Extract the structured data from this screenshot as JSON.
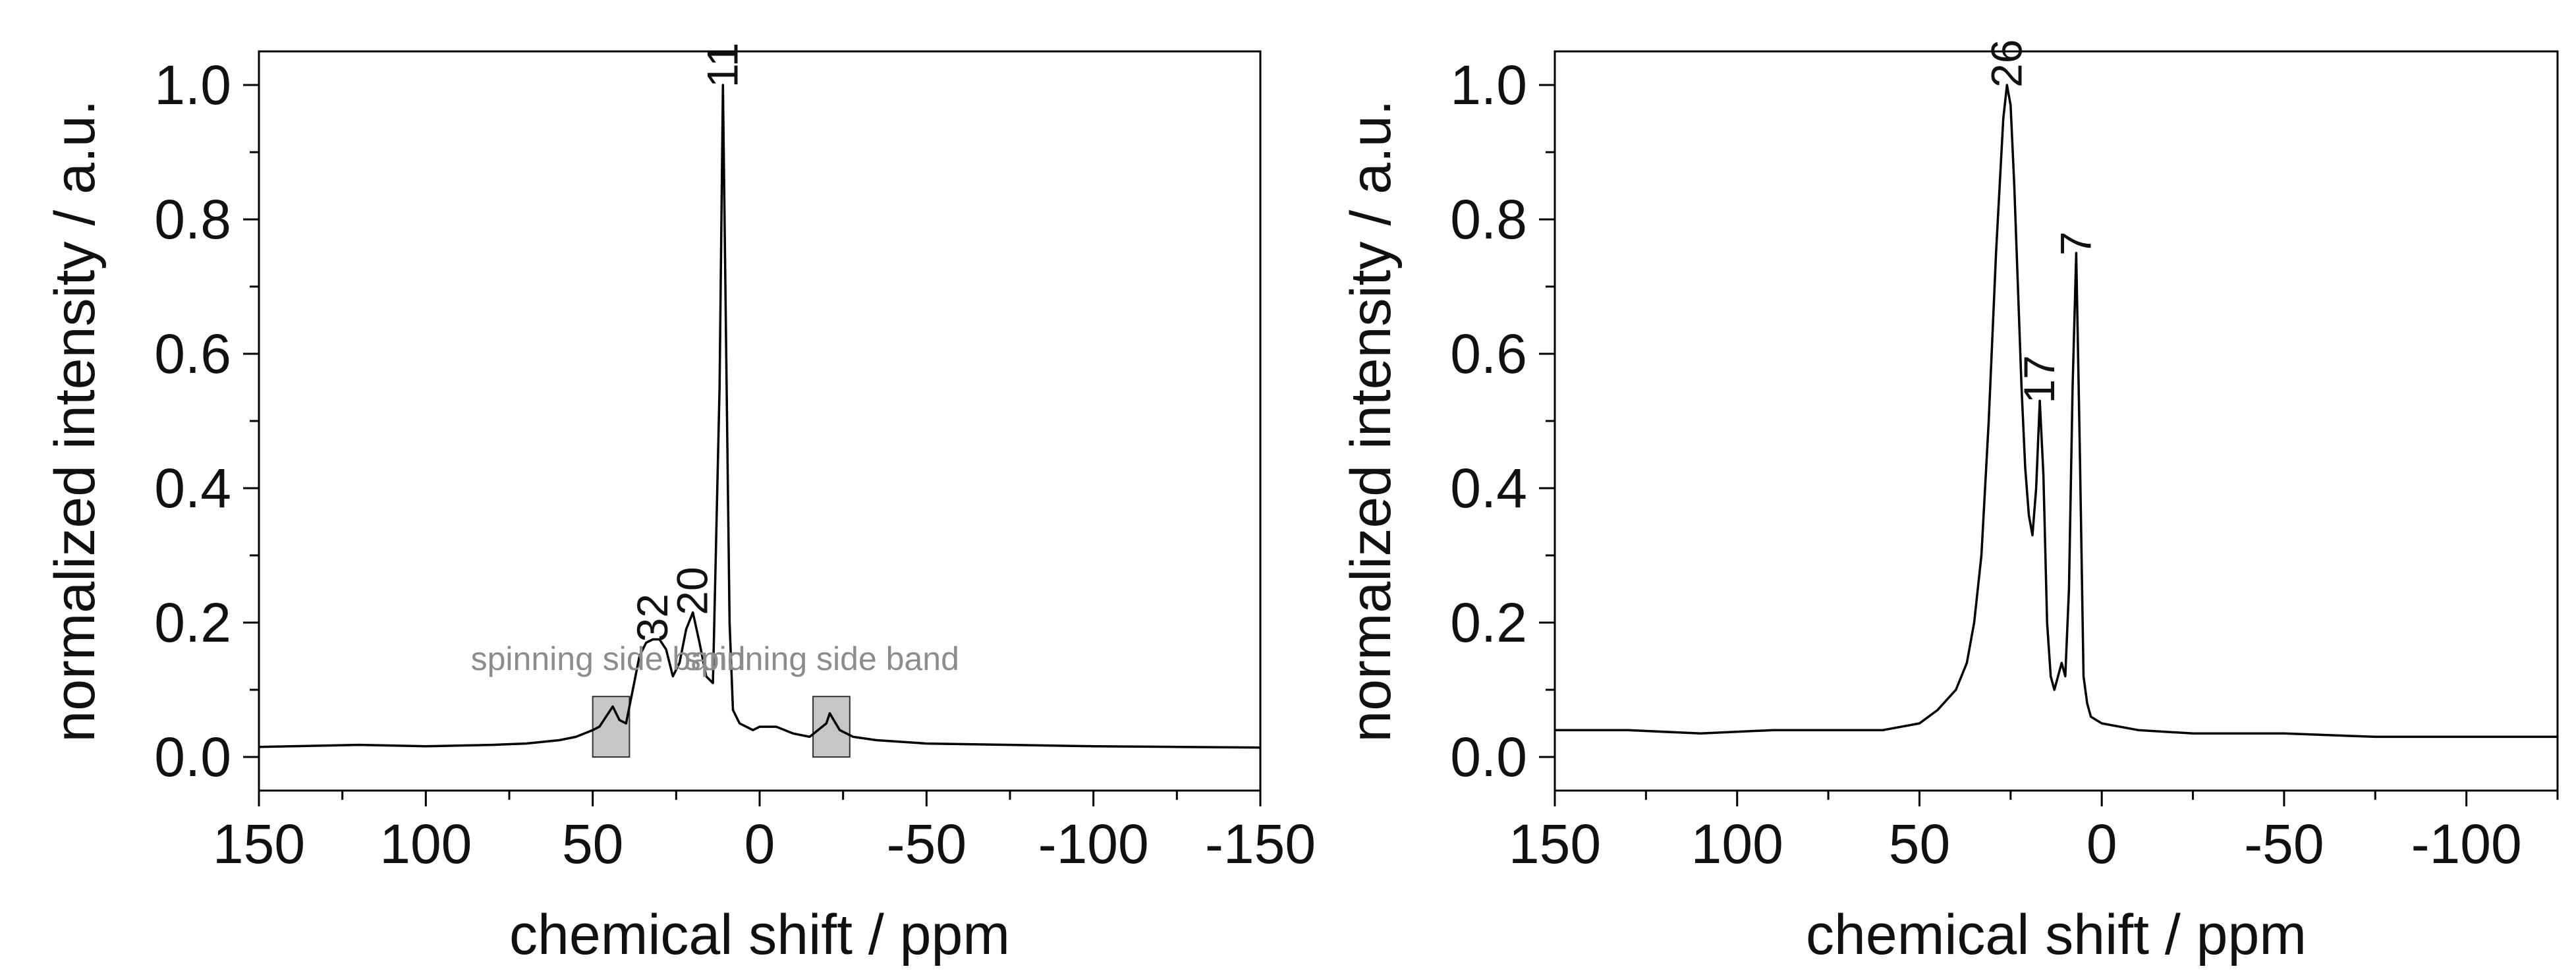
{
  "chart_data": [
    {
      "type": "line",
      "xlabel": "chemical shift / ppm",
      "ylabel": "normalized intensity / a.u.",
      "xlim": [
        150,
        -150
      ],
      "ylim": [
        -0.05,
        1.05
      ],
      "x_reversed": true,
      "x_ticks": [
        150,
        100,
        50,
        0,
        -50,
        -100,
        -150
      ],
      "x_tick_labels": [
        "150",
        "100",
        "50",
        "0",
        "-50",
        "-100",
        "-150"
      ],
      "y_ticks": [
        0.0,
        0.2,
        0.4,
        0.6,
        0.8,
        1.0
      ],
      "y_tick_labels": [
        "0.0",
        "0.2",
        "0.4",
        "0.6",
        "0.8",
        "1.0"
      ],
      "grid": false,
      "line_color": "#000000",
      "series": [
        {
          "x": [
            150,
            120,
            100,
            80,
            70,
            60,
            55,
            50,
            48,
            46,
            44,
            42,
            40,
            38,
            36,
            34,
            32,
            30,
            28,
            26,
            24,
            22,
            20,
            18,
            16,
            14,
            12,
            11,
            10,
            9,
            8,
            6,
            4,
            2,
            0,
            -5,
            -10,
            -15,
            -20,
            -21,
            -24,
            -28,
            -35,
            -50,
            -75,
            -100,
            -125,
            -150
          ],
          "y": [
            0.015,
            0.018,
            0.016,
            0.018,
            0.02,
            0.025,
            0.03,
            0.04,
            0.045,
            0.06,
            0.075,
            0.055,
            0.05,
            0.1,
            0.15,
            0.17,
            0.175,
            0.175,
            0.16,
            0.12,
            0.14,
            0.19,
            0.215,
            0.17,
            0.12,
            0.11,
            0.55,
            1.0,
            0.6,
            0.2,
            0.07,
            0.05,
            0.045,
            0.04,
            0.045,
            0.045,
            0.035,
            0.03,
            0.05,
            0.065,
            0.04,
            0.03,
            0.025,
            0.02,
            0.018,
            0.016,
            0.015,
            0.014
          ]
        }
      ],
      "annotations": [
        {
          "text": "11",
          "x": 11,
          "y": 1.0
        },
        {
          "text": "32",
          "x": 32,
          "y": 0.175
        },
        {
          "text": "20",
          "x": 20,
          "y": 0.215
        },
        {
          "text": "spinning side band",
          "x": 43,
          "y": 0.1
        },
        {
          "text": "spinning side band",
          "x": -21,
          "y": 0.1
        }
      ],
      "shaded_regions": [
        {
          "x_from": 50,
          "x_to": 39,
          "y_from": 0.0,
          "y_to": 0.09,
          "color": "#c6c6c6"
        },
        {
          "x_from": -16,
          "x_to": -27,
          "y_from": 0.0,
          "y_to": 0.09,
          "color": "#c6c6c6"
        }
      ]
    },
    {
      "type": "line",
      "xlabel": "chemical shift / ppm",
      "ylabel": "normalized intensity / a.u.",
      "xlim": [
        150,
        -125
      ],
      "ylim": [
        -0.05,
        1.05
      ],
      "x_reversed": true,
      "x_ticks": [
        150,
        100,
        50,
        0,
        -50,
        -100
      ],
      "x_tick_labels": [
        "150",
        "100",
        "50",
        "0",
        "-50",
        "-100"
      ],
      "y_ticks": [
        0.0,
        0.2,
        0.4,
        0.6,
        0.8,
        1.0
      ],
      "y_tick_labels": [
        "0.0",
        "0.2",
        "0.4",
        "0.6",
        "0.8",
        "1.0"
      ],
      "grid": false,
      "line_color": "#000000",
      "series": [
        {
          "x": [
            150,
            130,
            110,
            90,
            75,
            60,
            50,
            45,
            40,
            37,
            35,
            33,
            31,
            29,
            27,
            26,
            25,
            24,
            23,
            22,
            21,
            20,
            19,
            18,
            17,
            16,
            15,
            14,
            13,
            12,
            11,
            10,
            9,
            8,
            7,
            6,
            5,
            4,
            3,
            0,
            -10,
            -25,
            -50,
            -75,
            -100,
            -125
          ],
          "y": [
            0.04,
            0.04,
            0.035,
            0.04,
            0.04,
            0.04,
            0.05,
            0.07,
            0.1,
            0.14,
            0.2,
            0.3,
            0.5,
            0.75,
            0.95,
            1.0,
            0.97,
            0.85,
            0.7,
            0.55,
            0.43,
            0.36,
            0.33,
            0.4,
            0.53,
            0.42,
            0.2,
            0.12,
            0.1,
            0.12,
            0.14,
            0.12,
            0.25,
            0.55,
            0.75,
            0.45,
            0.12,
            0.08,
            0.06,
            0.05,
            0.04,
            0.035,
            0.035,
            0.03,
            0.03,
            0.03
          ]
        }
      ],
      "annotations": [
        {
          "text": "26",
          "x": 26,
          "y": 1.0
        },
        {
          "text": "17",
          "x": 17,
          "y": 0.53
        },
        {
          "text": "7",
          "x": 7,
          "y": 0.75
        }
      ]
    }
  ]
}
